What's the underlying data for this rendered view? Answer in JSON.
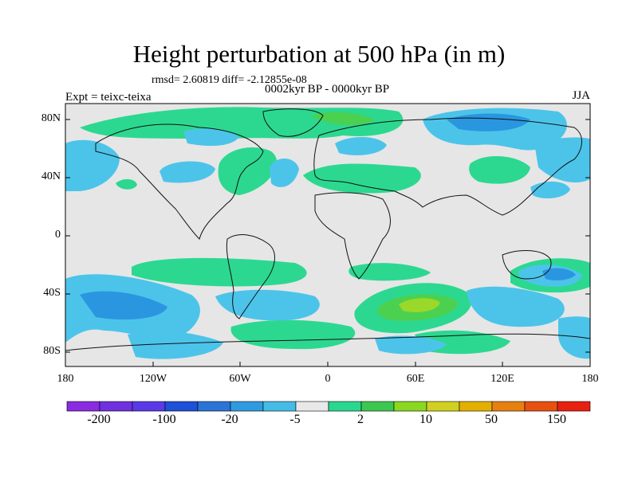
{
  "title": "Height perturbation at 500 hPa (in m)",
  "stats_line": "rmsd= 2.60819 diff= -2.12855e-08",
  "subtitle": "0002kyr BP - 0000kyr BP",
  "experiment_label": "Expt = teixc-teixa",
  "season": "JJA",
  "axes": {
    "lat_labels": [
      "80N",
      "40N",
      "0",
      "40S",
      "80S"
    ],
    "lon_labels": [
      "180",
      "120W",
      "60W",
      "0",
      "60E",
      "120E",
      "180"
    ]
  },
  "colorbar": {
    "colors": [
      "#8a2be2",
      "#7030e0",
      "#5a3ae8",
      "#1e50d8",
      "#2a74d8",
      "#2f9ae0",
      "#45bce6",
      "#e8e8e8",
      "#28d890",
      "#3cc850",
      "#8ad820",
      "#d0d020",
      "#e4b000",
      "#e88010",
      "#e85010",
      "#e82010"
    ],
    "labels": [
      "-200",
      "-100",
      "-20",
      "-5",
      "2",
      "10",
      "50",
      "150"
    ]
  },
  "palette": {
    "background": "#e6e6e6",
    "light_blue": "#4cc4ea",
    "blue": "#2a96e0",
    "dark_blue": "#2078d8",
    "green_teal": "#2cd890",
    "green": "#4cd050",
    "yellow_green": "#9ad82a",
    "coast": "#111111"
  }
}
